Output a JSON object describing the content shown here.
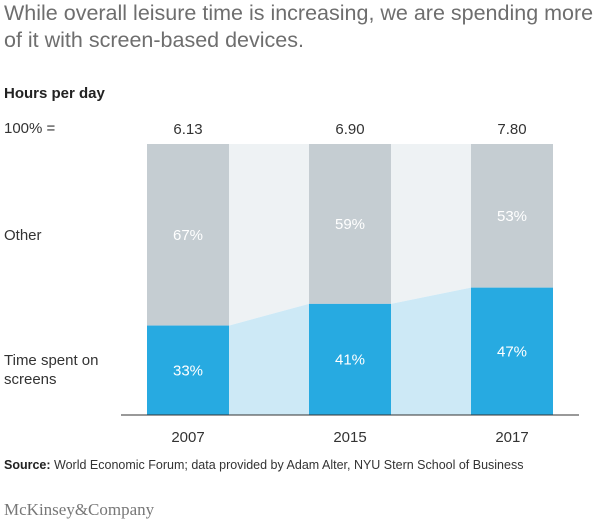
{
  "title": "While overall leisure time is increasing, we are spending more of it with screen-based devices.",
  "subhead": "Hours per day",
  "row_labels": {
    "total": "100% =",
    "other": "Other",
    "screens": "Time spent on screens"
  },
  "source": {
    "label": "Source:",
    "text": "World Economic Forum; data provided by Adam Alter, NYU Stern School of Business"
  },
  "brand": "McKinsey&Company",
  "colors": {
    "screens": "#27aae1",
    "screens_connector": "#cde9f6",
    "other": "#c5cdd2",
    "other_connector": "#eef2f4",
    "axis": "#333333"
  },
  "chart_data": {
    "type": "bar",
    "stacked": "100%",
    "categories": [
      "2007",
      "2015",
      "2017"
    ],
    "totals": [
      "6.13",
      "6.90",
      "7.80"
    ],
    "series": [
      {
        "name": "Time spent on screens",
        "values": [
          33,
          41,
          47
        ],
        "labels": [
          "33%",
          "41%",
          "47%"
        ]
      },
      {
        "name": "Other",
        "values": [
          67,
          59,
          53
        ],
        "labels": [
          "67%",
          "59%",
          "53%"
        ]
      }
    ],
    "ylim": [
      0,
      100
    ]
  }
}
